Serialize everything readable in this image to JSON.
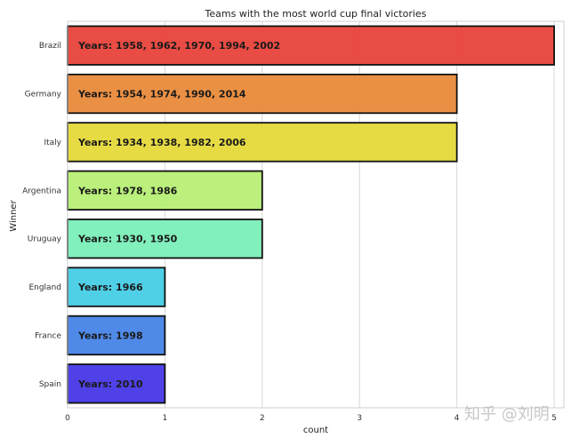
{
  "chart_data": {
    "type": "bar",
    "orientation": "horizontal",
    "title": "Teams with the most world cup final victories",
    "xlabel": "count",
    "ylabel": "Winner",
    "xlim": [
      0,
      5.1
    ],
    "xticks": [
      "0",
      "1",
      "2",
      "3",
      "4",
      "5"
    ],
    "grid": true,
    "categories": [
      "Brazil",
      "Germany",
      "Italy",
      "Argentina",
      "Uruguay",
      "England",
      "France",
      "Spain"
    ],
    "values": [
      5,
      4,
      4,
      2,
      2,
      1,
      1,
      1
    ],
    "annotations": [
      "Years: 1958, 1962, 1970, 1994, 2002",
      "Years: 1954, 1974, 1990, 2014",
      "Years: 1934, 1938, 1982, 2006",
      "Years: 1978, 1986",
      "Years: 1930, 1950",
      "Years: 1966",
      "Years: 1998",
      "Years: 2010"
    ],
    "colors": [
      "#e8423a",
      "#e98a3a",
      "#e6d93a",
      "#b6ef74",
      "#7aefb8",
      "#46cde6",
      "#4684e8",
      "#4637e6"
    ]
  },
  "watermark": "知乎 @刘明"
}
